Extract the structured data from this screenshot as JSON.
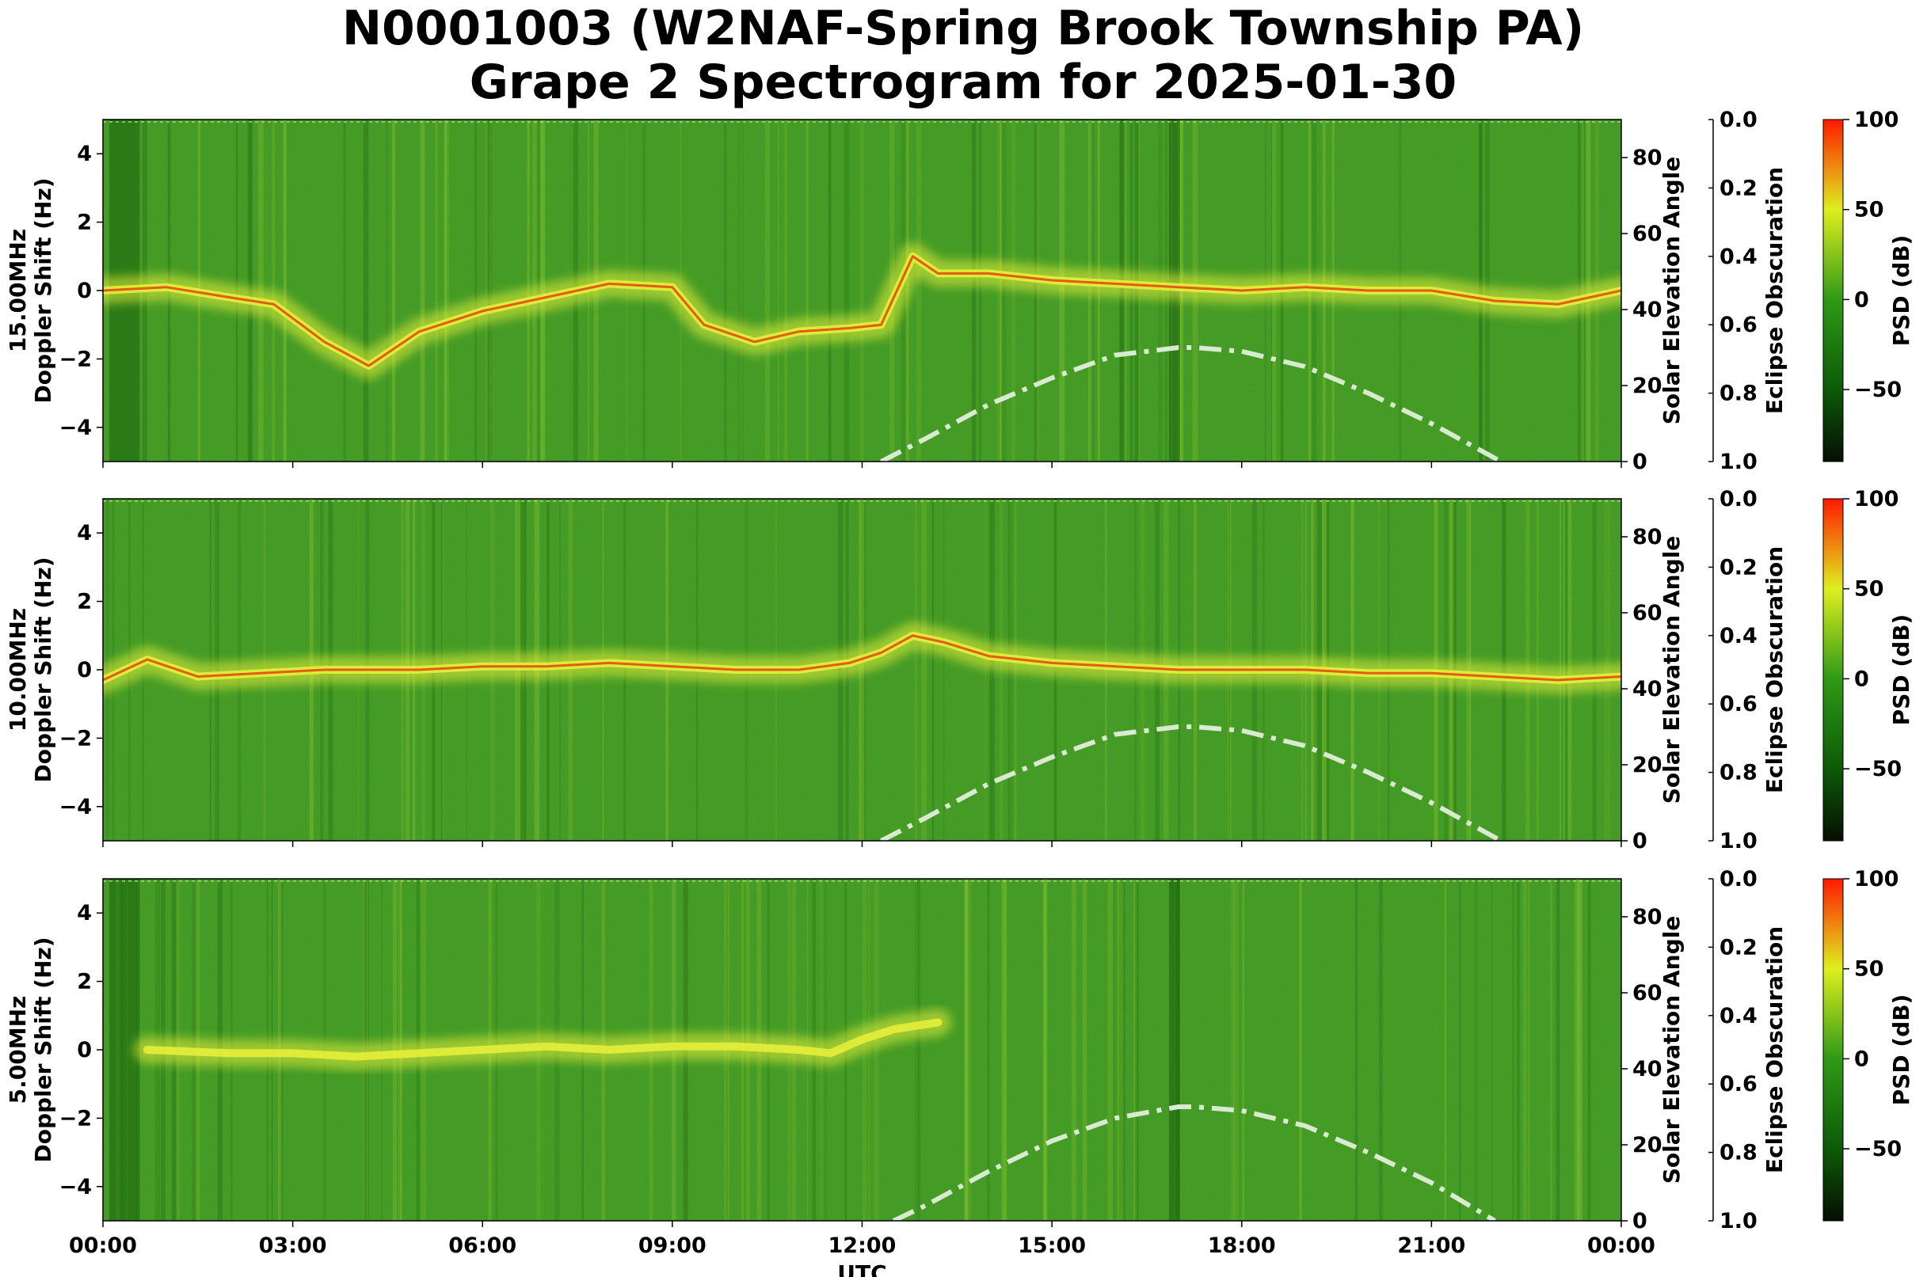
{
  "title": {
    "line1": "N0001003 (W2NAF-Spring Brook Township PA)",
    "line2": "Grape 2 Spectrogram for 2025-01-30"
  },
  "colors": {
    "background_green": "#3f9a1e",
    "trace_yellow": "#e6ee3a",
    "trace_red": "#e03a10",
    "solar_curve": "#d8ead0"
  },
  "colorbar": {
    "label": "PSD (dB)",
    "range": [
      -90,
      100
    ],
    "ticks": [
      100,
      50,
      0,
      -50
    ],
    "tick_labels": [
      "100",
      "50",
      "0",
      "−50"
    ],
    "stops": [
      {
        "value": -90,
        "color": "#050f02"
      },
      {
        "value": -50,
        "color": "#0d5a08"
      },
      {
        "value": 0,
        "color": "#2f9a16"
      },
      {
        "value": 50,
        "color": "#dfee1e"
      },
      {
        "value": 100,
        "color": "#ff1a00"
      }
    ]
  },
  "chart_data": [
    {
      "type": "heatmap",
      "band_label": "15.00MHz",
      "ylabel": "Doppler Shift (Hz)",
      "xlabel": "",
      "ylim": [
        -5,
        5
      ],
      "y_ticks": [
        4,
        2,
        0,
        -2,
        -4
      ],
      "y_tick_labels": [
        "4",
        "2",
        "0",
        "−2",
        "−4"
      ],
      "xlim_hours": [
        0,
        24
      ],
      "x_ticks_hours": [
        0,
        3,
        6,
        9,
        12,
        15,
        18,
        21,
        24
      ],
      "x_tick_labels": [],
      "secondary_axes": [
        {
          "label": "Solar Elevation Angle",
          "range": [
            0,
            90
          ],
          "ticks": [
            80,
            60,
            40,
            20,
            0
          ],
          "tick_labels": [
            "80",
            "60",
            "40",
            "20",
            "0"
          ]
        },
        {
          "label": "Eclipse Obscuration",
          "range": [
            0.0,
            1.0
          ],
          "ticks": [
            0.0,
            0.2,
            0.4,
            0.6,
            0.8,
            1.0
          ],
          "tick_labels": [
            "0.0",
            "0.2",
            "0.4",
            "0.6",
            "0.8",
            "1.0"
          ]
        }
      ],
      "solar_elevation": {
        "x_hours": [
          12.3,
          13,
          14,
          15,
          16,
          17,
          17.25,
          18,
          19,
          20,
          21,
          22.1
        ],
        "y_deg": [
          0,
          6,
          15,
          22,
          28,
          30,
          30,
          29,
          25,
          18,
          10,
          0
        ]
      },
      "doppler_trace": {
        "x_hours": [
          0,
          1,
          2,
          2.7,
          3.5,
          4.2,
          5,
          6,
          7,
          8,
          9,
          9.5,
          10.3,
          11,
          11.8,
          12.3,
          12.8,
          13.2,
          14,
          15,
          16,
          17,
          18,
          19,
          20,
          21,
          22,
          23,
          24
        ],
        "y_hz": [
          0,
          0.1,
          -0.2,
          -0.4,
          -1.5,
          -2.2,
          -1.2,
          -0.6,
          -0.2,
          0.2,
          0.1,
          -1.0,
          -1.5,
          -1.2,
          -1.1,
          -1.0,
          1.0,
          0.5,
          0.5,
          0.3,
          0.2,
          0.1,
          0.0,
          0.1,
          0.0,
          0.0,
          -0.3,
          -0.4,
          0.0
        ]
      }
    },
    {
      "type": "heatmap",
      "band_label": "10.00MHz",
      "ylabel": "Doppler Shift (Hz)",
      "xlabel": "",
      "ylim": [
        -5,
        5
      ],
      "y_ticks": [
        4,
        2,
        0,
        -2,
        -4
      ],
      "y_tick_labels": [
        "4",
        "2",
        "0",
        "−2",
        "−4"
      ],
      "xlim_hours": [
        0,
        24
      ],
      "x_ticks_hours": [
        0,
        3,
        6,
        9,
        12,
        15,
        18,
        21,
        24
      ],
      "x_tick_labels": [],
      "secondary_axes": [
        {
          "label": "Solar Elevation Angle",
          "range": [
            0,
            90
          ],
          "ticks": [
            80,
            60,
            40,
            20,
            0
          ],
          "tick_labels": [
            "80",
            "60",
            "40",
            "20",
            "0"
          ]
        },
        {
          "label": "Eclipse Obscuration",
          "range": [
            0.0,
            1.0
          ],
          "ticks": [
            0.0,
            0.2,
            0.4,
            0.6,
            0.8,
            1.0
          ],
          "tick_labels": [
            "0.0",
            "0.2",
            "0.4",
            "0.6",
            "0.8",
            "1.0"
          ]
        }
      ],
      "solar_elevation": {
        "x_hours": [
          12.3,
          13,
          14,
          15,
          16,
          17,
          17.25,
          18,
          19,
          20,
          21,
          22.1
        ],
        "y_deg": [
          0,
          6,
          15,
          22,
          28,
          30,
          30,
          29,
          25,
          18,
          10,
          0
        ]
      },
      "doppler_trace": {
        "x_hours": [
          0,
          0.7,
          1.5,
          2.5,
          3.5,
          5,
          6,
          7,
          8,
          9,
          10,
          11,
          11.8,
          12.3,
          12.8,
          13.3,
          14,
          15,
          16,
          17,
          18,
          19,
          20,
          21,
          22,
          23,
          24
        ],
        "y_hz": [
          -0.3,
          0.3,
          -0.2,
          -0.1,
          0.0,
          0.0,
          0.1,
          0.1,
          0.2,
          0.1,
          0.0,
          0.0,
          0.2,
          0.5,
          1.0,
          0.8,
          0.4,
          0.2,
          0.1,
          0.0,
          0.0,
          0.0,
          -0.1,
          -0.1,
          -0.2,
          -0.3,
          -0.2
        ]
      }
    },
    {
      "type": "heatmap",
      "band_label": "5.00MHz",
      "ylabel": "Doppler Shift (Hz)",
      "xlabel": "UTC",
      "ylim": [
        -5,
        5
      ],
      "y_ticks": [
        4,
        2,
        0,
        -2,
        -4
      ],
      "y_tick_labels": [
        "4",
        "2",
        "0",
        "−2",
        "−4"
      ],
      "xlim_hours": [
        0,
        24
      ],
      "x_ticks_hours": [
        0,
        3,
        6,
        9,
        12,
        15,
        18,
        21,
        24
      ],
      "x_tick_labels": [
        "00:00",
        "03:00",
        "06:00",
        "09:00",
        "12:00",
        "15:00",
        "18:00",
        "21:00",
        "00:00"
      ],
      "secondary_axes": [
        {
          "label": "Solar Elevation Angle",
          "range": [
            0,
            90
          ],
          "ticks": [
            80,
            60,
            40,
            20,
            0
          ],
          "tick_labels": [
            "80",
            "60",
            "40",
            "20",
            "0"
          ]
        },
        {
          "label": "Eclipse Obscuration",
          "range": [
            0.0,
            1.0
          ],
          "ticks": [
            0.0,
            0.2,
            0.4,
            0.6,
            0.8,
            1.0
          ],
          "tick_labels": [
            "0.0",
            "0.2",
            "0.4",
            "0.6",
            "0.8",
            "1.0"
          ]
        }
      ],
      "solar_elevation": {
        "x_hours": [
          12.5,
          13,
          14,
          15,
          16,
          17,
          17.25,
          18,
          19,
          20,
          21,
          22.0
        ],
        "y_deg": [
          0,
          4,
          13,
          21,
          27,
          30,
          30,
          29,
          25,
          18,
          10,
          0
        ]
      },
      "doppler_trace": {
        "x_hours": [
          0.7,
          2,
          3,
          4,
          5,
          6,
          7,
          8,
          9,
          10,
          11,
          11.5,
          12,
          12.5,
          13.2
        ],
        "y_hz": [
          0.0,
          -0.1,
          -0.1,
          -0.2,
          -0.1,
          0.0,
          0.1,
          0.0,
          0.1,
          0.1,
          0.0,
          -0.1,
          0.3,
          0.6,
          0.8
        ]
      }
    }
  ]
}
